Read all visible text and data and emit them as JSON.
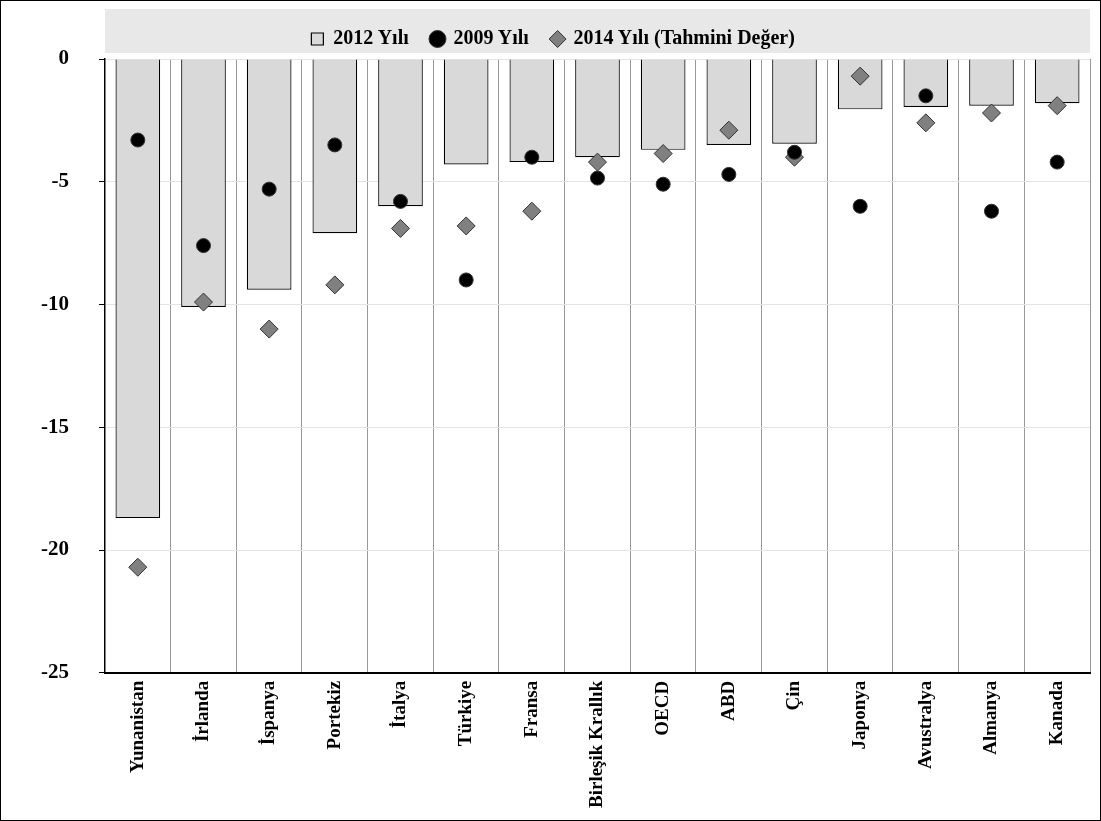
{
  "chart_data": {
    "type": "bar",
    "categories": [
      "Yunanistan",
      "İrlanda",
      "İspanya",
      "Portekiz",
      "İtalya",
      "Türkiye",
      "Fransa",
      "Birleşik Krallık",
      "OECD",
      "ABD",
      "Çin",
      "Japonya",
      "Avustralya",
      "Almanya",
      "Kanada"
    ],
    "series": [
      {
        "name": "2012 Yılı",
        "color": "#d9d9d9",
        "values": [
          -18.7,
          -10.1,
          -9.4,
          -7.1,
          -6.0,
          -4.3,
          -4.2,
          -4.0,
          -3.7,
          -3.5,
          -3.45,
          -2.05,
          -1.95,
          -1.9,
          -1.8
        ]
      },
      {
        "name": "2009 Yılı",
        "type": "scatter",
        "marker": "circle",
        "color": "#000000",
        "values": [
          -3.3,
          -7.6,
          -5.3,
          -3.5,
          -5.8,
          -9.0,
          -4.0,
          -4.85,
          -5.1,
          -4.7,
          -3.8,
          -6.0,
          -1.5,
          -6.2,
          -4.2
        ]
      },
      {
        "name": "2014 Yılı (Tahmini Değer)",
        "type": "scatter",
        "marker": "diamond",
        "color": "#808080",
        "values": [
          -20.7,
          -9.9,
          -11.0,
          -9.2,
          -6.9,
          -6.8,
          -6.2,
          -4.2,
          -3.85,
          -2.9,
          -4.0,
          -0.7,
          -2.6,
          -2.2,
          -1.9
        ]
      }
    ],
    "ylim": [
      -25,
      0
    ],
    "yticks": [
      0,
      -5,
      -10,
      -15,
      -20,
      -25
    ],
    "grid": true,
    "legend": "top"
  }
}
